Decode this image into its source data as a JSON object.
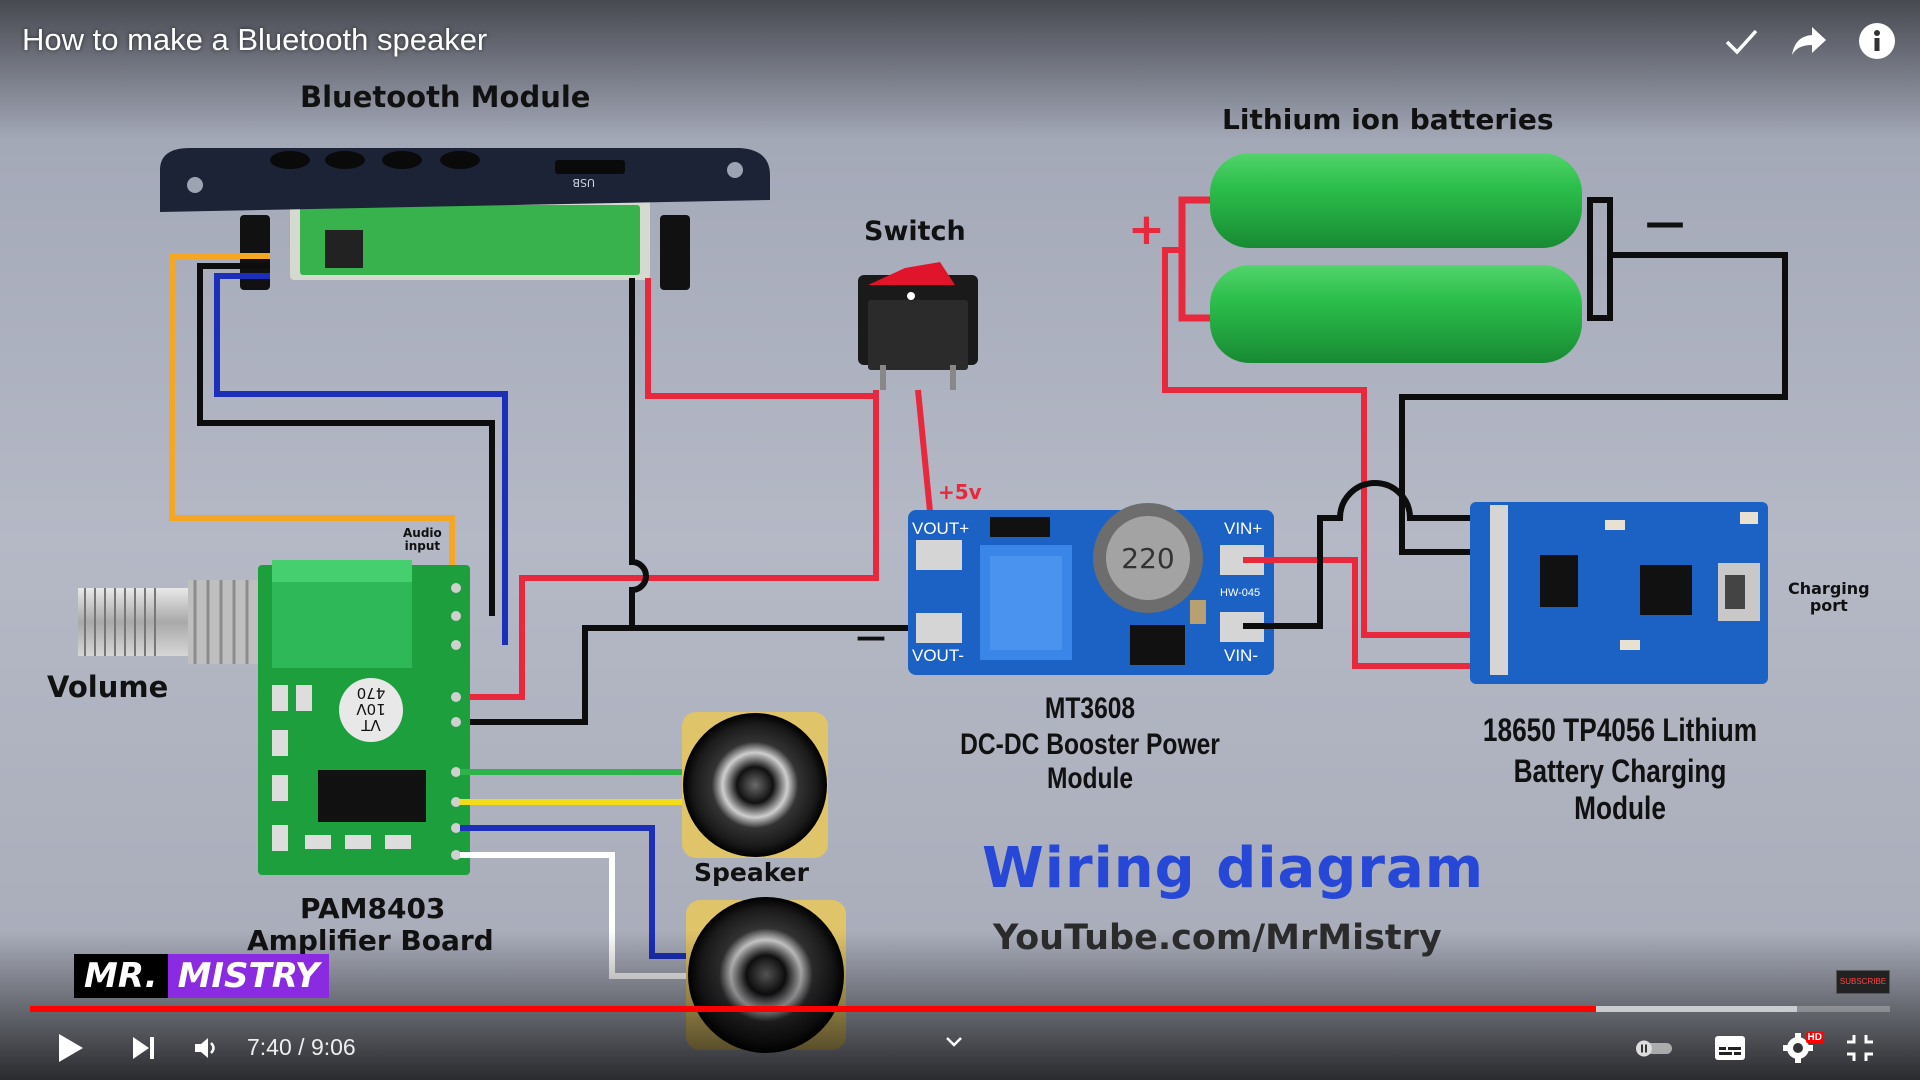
{
  "video": {
    "title": "How to make a Bluetooth speaker"
  },
  "top_actions": [
    {
      "icon": "checkmark-icon"
    },
    {
      "icon": "share-icon"
    },
    {
      "icon": "info-icon"
    }
  ],
  "diagram": {
    "labels": {
      "bluetooth_module": "Bluetooth Module",
      "lithium_batteries": "Lithium ion batteries",
      "switch": "Switch",
      "battery_plus": "+",
      "battery_minus": "—",
      "plus_5v": "+5v",
      "booster_minus": "—",
      "audio_input": "Audio\ninput",
      "volume": "Volume",
      "charging_port": "Charging\nport",
      "mt3608": "MT3608",
      "booster_desc": "DC-DC Booster Power Module",
      "tp4056_line1": "18650 TP4056 Lithium",
      "tp4056_line2": "Battery Charging Module",
      "speaker": "Speaker",
      "pam_line1": "PAM8403",
      "pam_line2": "Amplifier Board",
      "wiring_title": "Wiring diagram",
      "channel_url": "YouTube.com/MrMistry"
    },
    "pcb_text": {
      "booster_vout_plus": "VOUT+",
      "booster_vout_minus": "VOUT-",
      "booster_vin_plus": "VIN+",
      "booster_vin_minus": "VIN-",
      "booster_model": "HW-045",
      "inductor": "220",
      "cap_line1": "VT",
      "cap_line2": "10V",
      "cap_line3": "470",
      "usb_label": "USB"
    },
    "colors": {
      "red_wire": "#e8283c",
      "black_wire": "#0d0d0d",
      "blue_wire": "#1c2fb8",
      "orange_wire": "#f5a623",
      "green_wire": "#2eb34a",
      "yellow_wire": "#f2dc1a",
      "white_wire": "#ffffff",
      "battery": "#27b84a",
      "pcb_blue": "#1b62c4",
      "pcb_green": "#1e9f3e",
      "wiring_title": "#2747d6"
    }
  },
  "brand": {
    "part1": "MR.",
    "part2": "MISTRY"
  },
  "subscribe_badge": "SUBSCRIBE",
  "player": {
    "current_time": "7:40",
    "separator": " / ",
    "duration": "9:06",
    "played_fraction": 0.842,
    "buffered_fraction": 0.95,
    "quality_badge": "HD"
  },
  "controls": {
    "play": "play-icon",
    "next": "next-icon",
    "volume": "volume-icon",
    "chapter": "chevron-down-icon",
    "autoplay": "autoplay-toggle-icon",
    "subtitles": "subtitles-icon",
    "settings": "settings-icon",
    "fullscreen_exit": "exit-fullscreen-icon"
  }
}
